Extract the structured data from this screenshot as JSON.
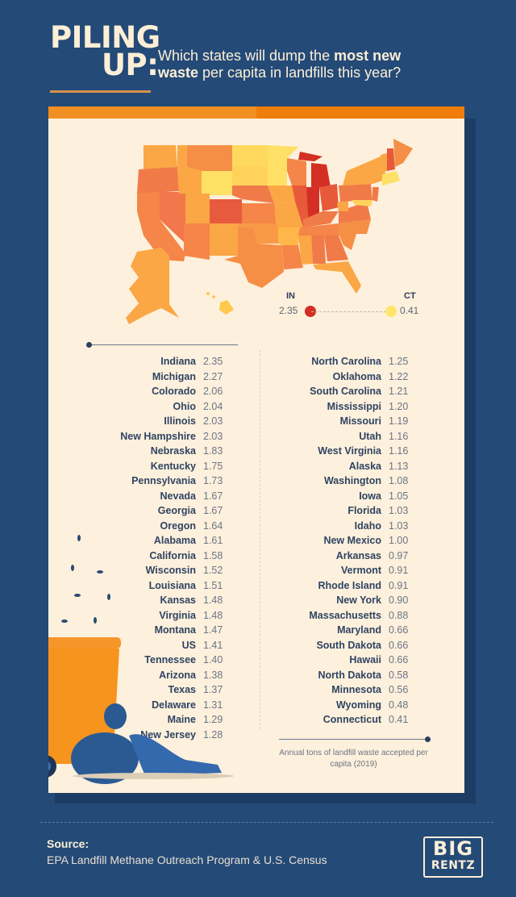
{
  "header": {
    "title_line1": "PILING",
    "title_line2": "UP:",
    "subtitle_pre": "Which states will dump the ",
    "subtitle_bold1": "most new",
    "subtitle_bold2": "waste",
    "subtitle_post": " per capita in landfills this year?"
  },
  "legend": {
    "high_label": "IN",
    "high_value": "2.35",
    "high_color": "#d32f24",
    "low_label": "CT",
    "low_value": "0.41",
    "low_color": "#ffe66a"
  },
  "chart_data": {
    "type": "table",
    "title": "Which states will dump the most new waste per capita in landfills this year?",
    "ylabel": "Annual tons of landfill waste accepted per capita (2019)",
    "color_scale": {
      "min": 0.41,
      "max": 2.35,
      "min_color": "#ffe66a",
      "max_color": "#d32f24"
    },
    "categories": [
      "Indiana",
      "Michigan",
      "Colorado",
      "Ohio",
      "Illinois",
      "New Hampshire",
      "Nebraska",
      "Kentucky",
      "Pennsylvania",
      "Nevada",
      "Georgia",
      "Oregon",
      "Alabama",
      "California",
      "Wisconsin",
      "Louisiana",
      "Kansas",
      "Virginia",
      "Montana",
      "US",
      "Tennessee",
      "Arizona",
      "Texas",
      "Delaware",
      "Maine",
      "New Jersey",
      "North Carolina",
      "Oklahoma",
      "South Carolina",
      "Mississippi",
      "Missouri",
      "Utah",
      "West Virginia",
      "Alaska",
      "Washington",
      "Iowa",
      "Florida",
      "Idaho",
      "New Mexico",
      "Arkansas",
      "Vermont",
      "Rhode Island",
      "New York",
      "Massachusetts",
      "Maryland",
      "South Dakota",
      "Hawaii",
      "North Dakota",
      "Minnesota",
      "Wyoming",
      "Connecticut"
    ],
    "values": [
      2.35,
      2.27,
      2.06,
      2.04,
      2.03,
      2.03,
      1.83,
      1.75,
      1.73,
      1.67,
      1.67,
      1.64,
      1.61,
      1.58,
      1.52,
      1.51,
      1.48,
      1.48,
      1.47,
      1.41,
      1.4,
      1.38,
      1.37,
      1.31,
      1.29,
      1.28,
      1.25,
      1.22,
      1.21,
      1.2,
      1.19,
      1.16,
      1.16,
      1.13,
      1.08,
      1.05,
      1.03,
      1.03,
      1.0,
      0.97,
      0.91,
      0.91,
      0.9,
      0.88,
      0.66,
      0.66,
      0.66,
      0.58,
      0.56,
      0.48,
      0.41
    ]
  },
  "list_left": [
    {
      "state": "Indiana",
      "value": "2.35"
    },
    {
      "state": "Michigan",
      "value": "2.27"
    },
    {
      "state": "Colorado",
      "value": "2.06"
    },
    {
      "state": "Ohio",
      "value": "2.04"
    },
    {
      "state": "Illinois",
      "value": "2.03"
    },
    {
      "state": "New Hampshire",
      "value": "2.03"
    },
    {
      "state": "Nebraska",
      "value": "1.83"
    },
    {
      "state": "Kentucky",
      "value": "1.75"
    },
    {
      "state": "Pennsylvania",
      "value": "1.73"
    },
    {
      "state": "Nevada",
      "value": "1.67"
    },
    {
      "state": "Georgia",
      "value": "1.67"
    },
    {
      "state": "Oregon",
      "value": "1.64"
    },
    {
      "state": "Alabama",
      "value": "1.61"
    },
    {
      "state": "California",
      "value": "1.58"
    },
    {
      "state": "Wisconsin",
      "value": "1.52"
    },
    {
      "state": "Louisiana",
      "value": "1.51"
    },
    {
      "state": "Kansas",
      "value": "1.48"
    },
    {
      "state": "Virginia",
      "value": "1.48"
    },
    {
      "state": "Montana",
      "value": "1.47"
    },
    {
      "state": "US",
      "value": "1.41"
    },
    {
      "state": "Tennessee",
      "value": "1.40"
    },
    {
      "state": "Arizona",
      "value": "1.38"
    },
    {
      "state": "Texas",
      "value": "1.37"
    },
    {
      "state": "Delaware",
      "value": "1.31"
    },
    {
      "state": "Maine",
      "value": "1.29"
    },
    {
      "state": "New Jersey",
      "value": "1.28"
    }
  ],
  "list_right": [
    {
      "state": "North Carolina",
      "value": "1.25"
    },
    {
      "state": "Oklahoma",
      "value": "1.22"
    },
    {
      "state": "South Carolina",
      "value": "1.21"
    },
    {
      "state": "Mississippi",
      "value": "1.20"
    },
    {
      "state": "Missouri",
      "value": "1.19"
    },
    {
      "state": "Utah",
      "value": "1.16"
    },
    {
      "state": "West Virginia",
      "value": "1.16"
    },
    {
      "state": "Alaska",
      "value": "1.13"
    },
    {
      "state": "Washington",
      "value": "1.08"
    },
    {
      "state": "Iowa",
      "value": "1.05"
    },
    {
      "state": "Florida",
      "value": "1.03"
    },
    {
      "state": "Idaho",
      "value": "1.03"
    },
    {
      "state": "New Mexico",
      "value": "1.00"
    },
    {
      "state": "Arkansas",
      "value": "0.97"
    },
    {
      "state": "Vermont",
      "value": "0.91"
    },
    {
      "state": "Rhode Island",
      "value": "0.91"
    },
    {
      "state": "New York",
      "value": "0.90"
    },
    {
      "state": "Massachusetts",
      "value": "0.88"
    },
    {
      "state": "Maryland",
      "value": "0.66"
    },
    {
      "state": "South Dakota",
      "value": "0.66"
    },
    {
      "state": "Hawaii",
      "value": "0.66"
    },
    {
      "state": "North Dakota",
      "value": "0.58"
    },
    {
      "state": "Minnesota",
      "value": "0.56"
    },
    {
      "state": "Wyoming",
      "value": "0.48"
    },
    {
      "state": "Connecticut",
      "value": "0.41"
    }
  ],
  "note": "Annual tons of landfill waste accepted per capita (2019)",
  "footer": {
    "source_title": "Source:",
    "source_text": "EPA Landfill Methane Outreach Program & U.S. Census",
    "logo_top": "BIG",
    "logo_bottom": "RENTZ"
  },
  "colors": {
    "background": "#244a78",
    "card": "#fdf0dc",
    "accent": "#f28f22",
    "text": "#2f4463"
  }
}
